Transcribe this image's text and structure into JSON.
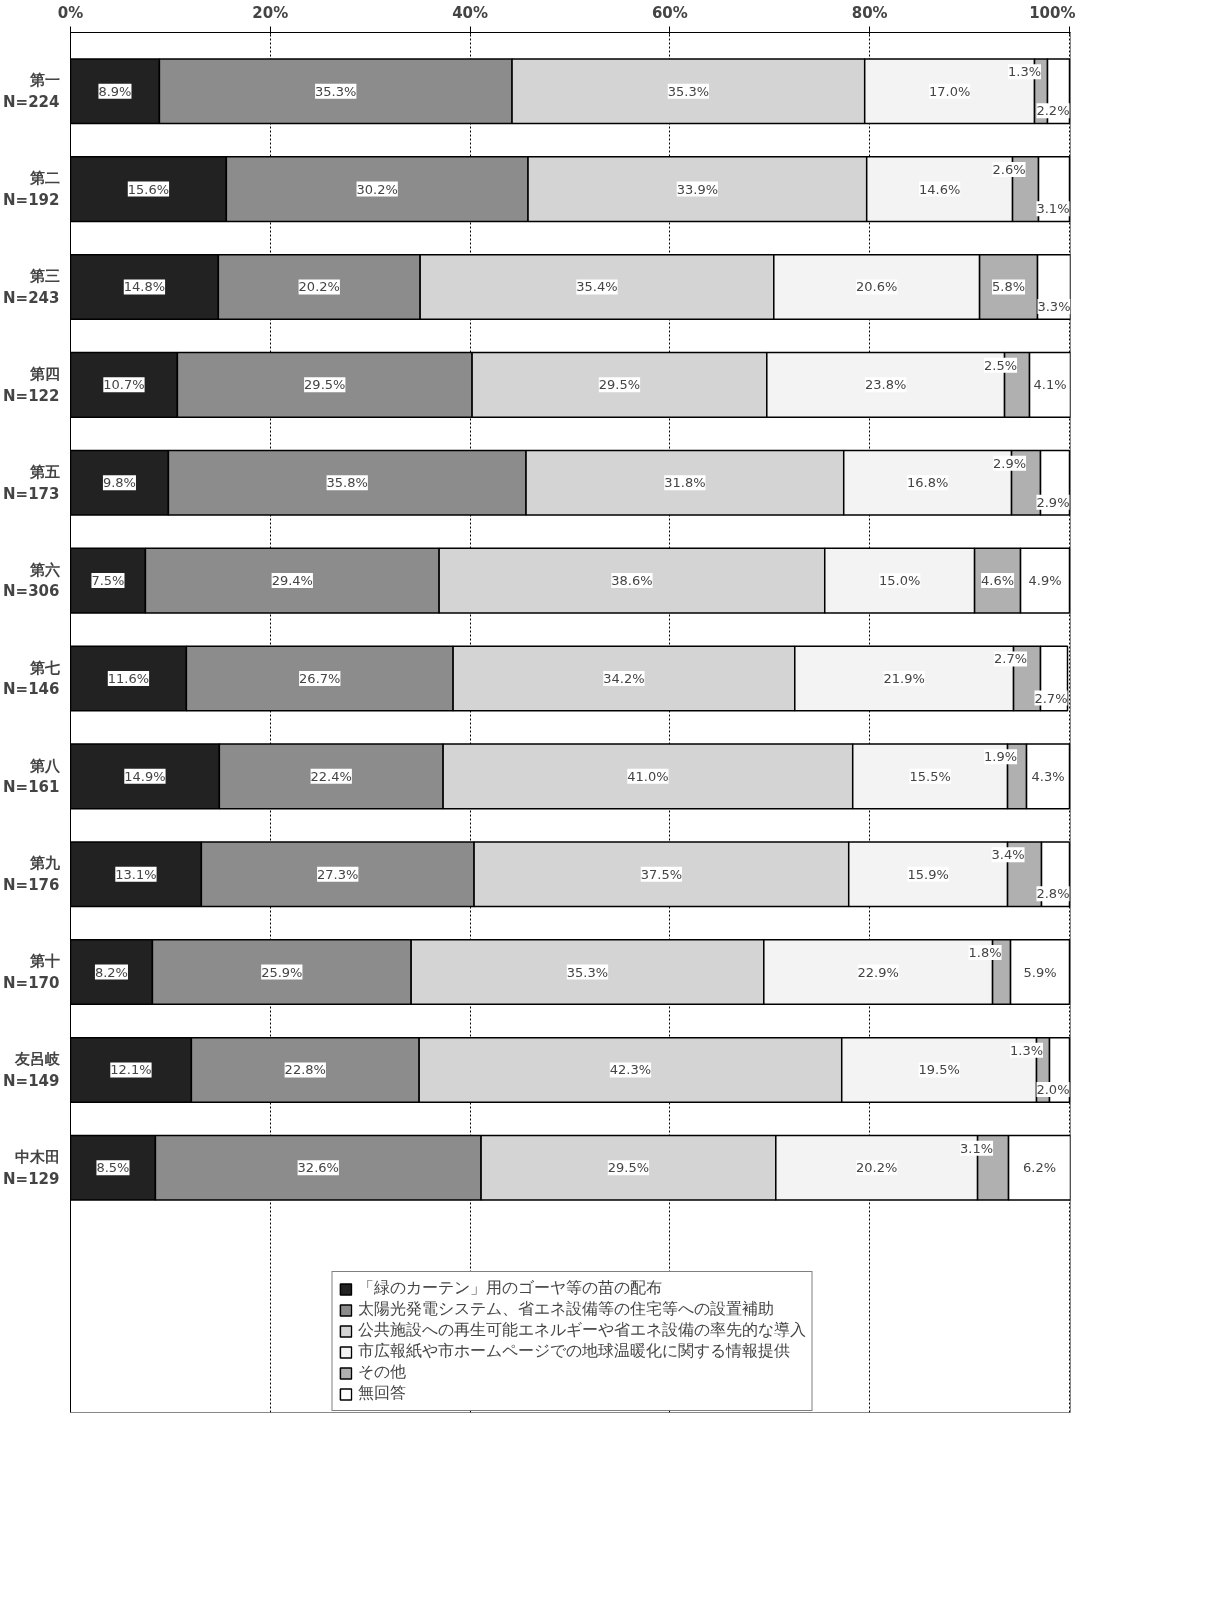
{
  "chart_data": {
    "type": "bar",
    "orientation": "horizontal",
    "stacked": true,
    "categories": [
      "第一\nN=224",
      "第二\nN=192",
      "第三\nN=243",
      "第四\nN=122",
      "第五\nN=173",
      "第六\nN=306",
      "第七\nN=146",
      "第八\nN=161",
      "第九\nN=176",
      "第十\nN=170",
      "友呂岐\nN=149",
      "中木田\nN=129"
    ],
    "series": [
      {
        "name": "「緑のカーテン」用のゴーヤ等の苗の配布",
        "color": "#222222",
        "values": [
          8.9,
          15.6,
          14.8,
          10.7,
          9.8,
          7.5,
          11.6,
          14.9,
          13.1,
          8.2,
          12.1,
          8.5
        ]
      },
      {
        "name": "太陽光発電システム、省エネ設備等の住宅等への設置補助",
        "color": "#8c8c8c",
        "values": [
          35.3,
          30.2,
          20.2,
          29.5,
          35.8,
          29.4,
          26.7,
          22.4,
          27.3,
          25.9,
          22.8,
          32.6
        ]
      },
      {
        "name": "公共施設への再生可能エネルギーや省エネ設備の率先的な導入",
        "color": "#d4d4d4",
        "values": [
          35.3,
          33.9,
          35.4,
          29.5,
          31.8,
          38.6,
          34.2,
          41.0,
          37.5,
          35.3,
          42.3,
          29.5
        ]
      },
      {
        "name": "市広報紙や市ホームページでの地球温暖化に関する情報提供",
        "color": "#f3f3f3",
        "values": [
          17.0,
          14.6,
          20.6,
          23.8,
          16.8,
          15.0,
          21.9,
          15.5,
          15.9,
          22.9,
          19.5,
          20.2
        ]
      },
      {
        "name": "その他",
        "color": "#b0b0b0",
        "values": [
          1.3,
          2.6,
          5.8,
          2.5,
          2.9,
          4.6,
          2.7,
          1.9,
          3.4,
          1.8,
          1.3,
          3.1
        ]
      },
      {
        "name": "無回答",
        "color": "#ffffff",
        "values": [
          2.2,
          3.1,
          3.3,
          4.1,
          2.9,
          4.9,
          2.7,
          4.3,
          2.8,
          5.9,
          2.0,
          6.2
        ]
      }
    ],
    "xlim": [
      0,
      100.1
    ],
    "xticks": [
      {
        "value": 0,
        "label": "0%"
      },
      {
        "value": 20,
        "label": "20%"
      },
      {
        "value": 40,
        "label": "40%"
      },
      {
        "value": 60,
        "label": "60%"
      },
      {
        "value": 80,
        "label": "80%"
      },
      {
        "value": 100,
        "label": "100%"
      }
    ],
    "value_labels": [
      [
        "8.9%",
        "15.6%",
        "14.8%",
        "10.7%",
        "9.8%",
        "7.5%",
        "11.6%",
        "14.9%",
        "13.1%",
        "8.2%",
        "12.1%",
        "8.5%"
      ],
      [
        "35.3%",
        "30.2%",
        "20.2%",
        "29.5%",
        "35.8%",
        "29.4%",
        "26.7%",
        "22.4%",
        "27.3%",
        "25.9%",
        "22.8%",
        "32.6%"
      ],
      [
        "35.3%",
        "33.9%",
        "35.4%",
        "29.5%",
        "31.8%",
        "38.6%",
        "34.2%",
        "41.0%",
        "37.5%",
        "35.3%",
        "42.3%",
        "29.5%"
      ],
      [
        "17.0%",
        "14.6%",
        "20.6%",
        "23.8%",
        "16.8%",
        "15.0%",
        "21.9%",
        "15.5%",
        "15.9%",
        "22.9%",
        "19.5%",
        "20.2%"
      ],
      [
        "1.3%",
        "2.6%",
        "5.8%",
        "2.5%",
        "2.9%",
        "4.6%",
        "2.7%",
        "1.9%",
        "3.4%",
        "1.8%",
        "1.3%",
        "3.1%"
      ],
      [
        "2.2%",
        "3.1%",
        "3.3%",
        "4.1%",
        "2.9%",
        "4.9%",
        "2.7%",
        "4.3%",
        "2.8%",
        "5.9%",
        "2.0%",
        "6.2%"
      ]
    ],
    "grid": "x",
    "legend": "bottom"
  }
}
